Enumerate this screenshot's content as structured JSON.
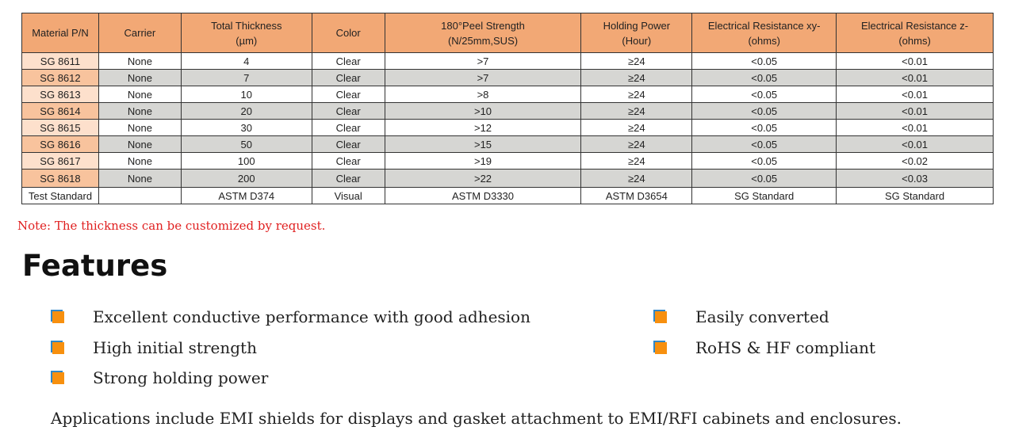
{
  "table": {
    "headers": [
      "Material P/N",
      "Carrier",
      "Total Thickness\n(µm)",
      "Color",
      "180°Peel Strength\n(N/25mm,SUS)",
      "Holding Power\n(Hour)",
      "Electrical Resistance xy-\n(ohms)",
      "Electrical Resistance z-\n(ohms)"
    ],
    "rows": [
      [
        "SG 8611",
        "None",
        "4",
        "Clear",
        ">7",
        "≥24",
        "<0.05",
        "<0.01"
      ],
      [
        "SG 8612",
        "None",
        "7",
        "Clear",
        ">7",
        "≥24",
        "<0.05",
        "<0.01"
      ],
      [
        "SG 8613",
        "None",
        "10",
        "Clear",
        ">8",
        "≥24",
        "<0.05",
        "<0.01"
      ],
      [
        "SG 8614",
        "None",
        "20",
        "Clear",
        ">10",
        "≥24",
        "<0.05",
        "<0.01"
      ],
      [
        "SG 8615",
        "None",
        "30",
        "Clear",
        ">12",
        "≥24",
        "<0.05",
        "<0.01"
      ],
      [
        "SG 8616",
        "None",
        "50",
        "Clear",
        ">15",
        "≥24",
        "<0.05",
        "<0.01"
      ],
      [
        "SG 8617",
        "None",
        "100",
        "Clear",
        ">19",
        "≥24",
        "<0.05",
        "<0.02"
      ],
      [
        "SG 8618",
        "None",
        "200",
        "Clear",
        ">22",
        "≥24",
        "<0.05",
        "<0.03"
      ]
    ],
    "standard": [
      "Test Standard",
      "",
      "ASTM D374",
      "Visual",
      "ASTM D3330",
      "ASTM D3654",
      "SG Standard",
      "SG Standard"
    ]
  },
  "note": "Note: The thickness can be customized by request.",
  "features_title": "Features",
  "features": [
    "Excellent conductive performance with good adhesion",
    "High initial strength",
    "Strong holding power",
    "Easily converted",
    "RoHS & HF compliant"
  ],
  "applications": "Applications include EMI shields for displays and gasket attachment to EMI/RFI cabinets and enclosures.",
  "colors": {
    "header": "#f2a875",
    "bullet": "#f7900f",
    "note": "#e02020"
  }
}
